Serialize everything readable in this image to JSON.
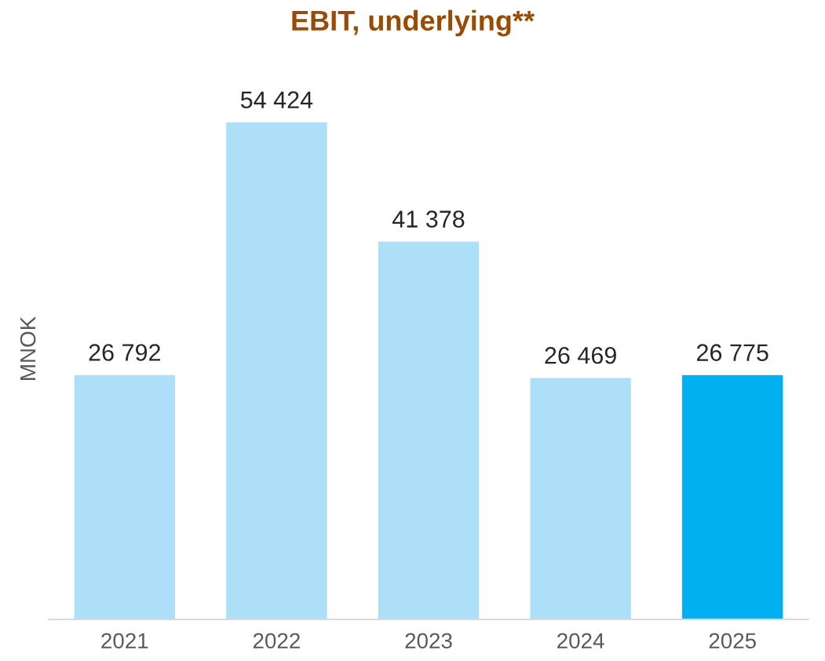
{
  "chart_data": {
    "type": "bar",
    "title": "EBIT, underlying**",
    "ylabel": "MNOK",
    "categories": [
      "2021",
      "2022",
      "2023",
      "2024",
      "2025"
    ],
    "values": [
      26792,
      54424,
      41378,
      26469,
      26775
    ],
    "value_labels": [
      "26 792",
      "54 424",
      "41 378",
      "26 469",
      "26 775"
    ],
    "colors": [
      "#addff9",
      "#addff9",
      "#addff9",
      "#addff9",
      "#00b0f0"
    ],
    "grid": false,
    "legend": false
  }
}
